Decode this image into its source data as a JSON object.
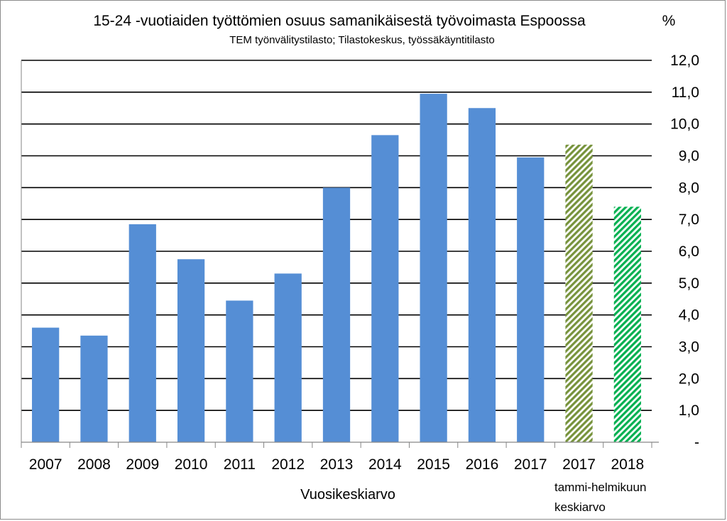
{
  "chart_data": {
    "type": "bar",
    "title": "15-24 -vuotiaiden työttömien osuus samanikäisestä työvoimasta Espoossa",
    "subtitle": "TEM työnvälitystilasto;  Tilastokeskus, työssäkäyntitilasto",
    "unit_label": "%",
    "categories": [
      "2007",
      "2008",
      "2009",
      "2010",
      "2011",
      "2012",
      "2013",
      "2014",
      "2015",
      "2016",
      "2017",
      "2017",
      "2018"
    ],
    "values": [
      3.6,
      3.35,
      6.85,
      5.75,
      4.45,
      5.3,
      8.0,
      9.65,
      10.95,
      10.5,
      8.95,
      9.35,
      7.4
    ],
    "bar_styles": [
      "solid",
      "solid",
      "solid",
      "solid",
      "solid",
      "solid",
      "solid",
      "solid",
      "solid",
      "solid",
      "solid",
      "hatch-olive",
      "hatch-green"
    ],
    "y_ticks": [
      "-",
      "1,0",
      "2,0",
      "3,0",
      "4,0",
      "5,0",
      "6,0",
      "7,0",
      "8,0",
      "9,0",
      "10,0",
      "11,0",
      "12,0"
    ],
    "ylim": [
      0,
      12
    ],
    "y_axis_side": "right",
    "grid": true,
    "group_labels": {
      "annual": "Vuosikeskiarvo",
      "janfeb_line1": "tammi-helmikuun",
      "janfeb_line2": "keskiarvo"
    },
    "colors": {
      "bar": "#558ed5",
      "hatch_olive": "#77933c",
      "hatch_green": "#00b050",
      "grid": "#000000"
    }
  }
}
